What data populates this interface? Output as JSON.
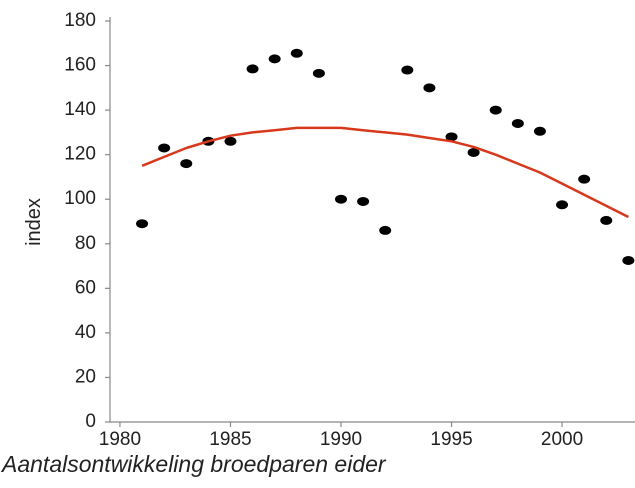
{
  "chart_data": {
    "type": "scatter",
    "title": "Aantalsontwikkeling broedparen eider",
    "y_label": "index",
    "x": [
      1981,
      1982,
      1983,
      1984,
      1985,
      1986,
      1987,
      1988,
      1989,
      1990,
      1991,
      1992,
      1993,
      1994,
      1995,
      1996,
      1997,
      1998,
      1999,
      2000,
      2001,
      2002,
      2003
    ],
    "series": [
      {
        "type": "scatter",
        "color": "#000000",
        "values": [
          89,
          123,
          116,
          126,
          126,
          158.5,
          163,
          165.5,
          156.5,
          100,
          99,
          86,
          158,
          150,
          128,
          121,
          140,
          134,
          130.5,
          97.5,
          109,
          90.5,
          72.5
        ]
      },
      {
        "type": "line",
        "color": "#d8381c",
        "values": [
          115,
          119,
          123,
          126,
          128.5,
          130,
          131,
          132,
          132,
          132,
          131,
          130,
          129,
          127.5,
          126,
          123.5,
          120,
          116,
          112,
          107,
          102,
          97,
          92
        ]
      }
    ],
    "xlim": [
      1979.55,
      2003.3
    ],
    "xticks": [
      1980,
      1985,
      1990,
      1995,
      2000
    ],
    "ylim": [
      0,
      180
    ],
    "yticks": [
      0,
      20,
      40,
      60,
      80,
      100,
      120,
      140,
      160,
      180
    ],
    "grid": false
  }
}
